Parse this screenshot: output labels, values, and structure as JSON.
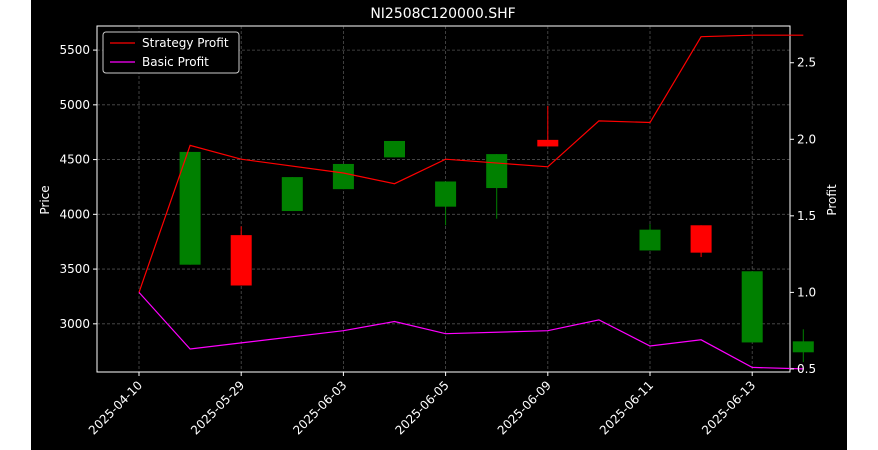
{
  "chart_data": {
    "type": "candlestick",
    "title": "NI2508C120000.SHF",
    "xlabel": "",
    "ylabel": "Price",
    "ylabel_right": "Profit",
    "grid": true,
    "legend_position": "top-left",
    "x_tick_labels": [
      "2025-04-10",
      "2025-05-29",
      "2025-06-03",
      "2025-06-05",
      "2025-06-09",
      "2025-06-11",
      "2025-06-13"
    ],
    "ylim": [
      2560,
      5720
    ],
    "y_ticks": [
      3000,
      3500,
      4000,
      4500,
      5000,
      5500
    ],
    "ylim_right": [
      0.48,
      2.74
    ],
    "y_ticks_right": [
      0.5,
      1.0,
      1.5,
      2.0,
      2.5
    ],
    "colors": {
      "up": "#008000",
      "down": "#ff0000",
      "strategy": "#ff0000",
      "basic": "#ff00ff",
      "background": "#000000",
      "figure_background": "#ffffff"
    },
    "candles": [
      {
        "index": 1,
        "open": 3540,
        "close": 4570,
        "high": 4570,
        "low": 3540
      },
      {
        "index": 2,
        "open": 3810,
        "close": 3350,
        "high": 3890,
        "low": 3350
      },
      {
        "index": 3,
        "open": 4030,
        "close": 4340,
        "high": 4340,
        "low": 4030
      },
      {
        "index": 4,
        "open": 4230,
        "close": 4460,
        "high": 4460,
        "low": 4230
      },
      {
        "index": 5,
        "open": 4520,
        "close": 4670,
        "high": 4670,
        "low": 4520
      },
      {
        "index": 6,
        "open": 4070,
        "close": 4300,
        "high": 4300,
        "low": 3900
      },
      {
        "index": 7,
        "open": 4240,
        "close": 4550,
        "high": 4550,
        "low": 3960
      },
      {
        "index": 8,
        "open": 4680,
        "close": 4620,
        "high": 4990,
        "low": 4620
      },
      {
        "index": 10,
        "open": 3670,
        "close": 3860,
        "high": 3910,
        "low": 3670
      },
      {
        "index": 11,
        "open": 3900,
        "close": 3650,
        "high": 3900,
        "low": 3610
      },
      {
        "index": 12,
        "open": 2830,
        "close": 3480,
        "high": 3480,
        "low": 2830
      },
      {
        "index": 13,
        "open": 2740,
        "close": 2840,
        "high": 2950,
        "low": 2650
      }
    ],
    "series": [
      {
        "name": "Strategy Profit",
        "axis": "right",
        "color": "#ff0000",
        "x_index": [
          0,
          1,
          2,
          4,
          5,
          6,
          8,
          9,
          10,
          11,
          12,
          13
        ],
        "values": [
          1.0,
          1.96,
          1.87,
          1.78,
          1.71,
          1.87,
          1.82,
          2.12,
          2.11,
          2.67,
          2.68,
          2.68
        ]
      },
      {
        "name": "Basic Profit",
        "axis": "right",
        "color": "#ff00ff",
        "x_index": [
          0,
          1,
          2,
          4,
          5,
          6,
          8,
          9,
          10,
          11,
          12,
          13
        ],
        "values": [
          1.0,
          0.63,
          0.67,
          0.75,
          0.81,
          0.73,
          0.75,
          0.82,
          0.65,
          0.69,
          0.51,
          0.5
        ]
      }
    ]
  }
}
